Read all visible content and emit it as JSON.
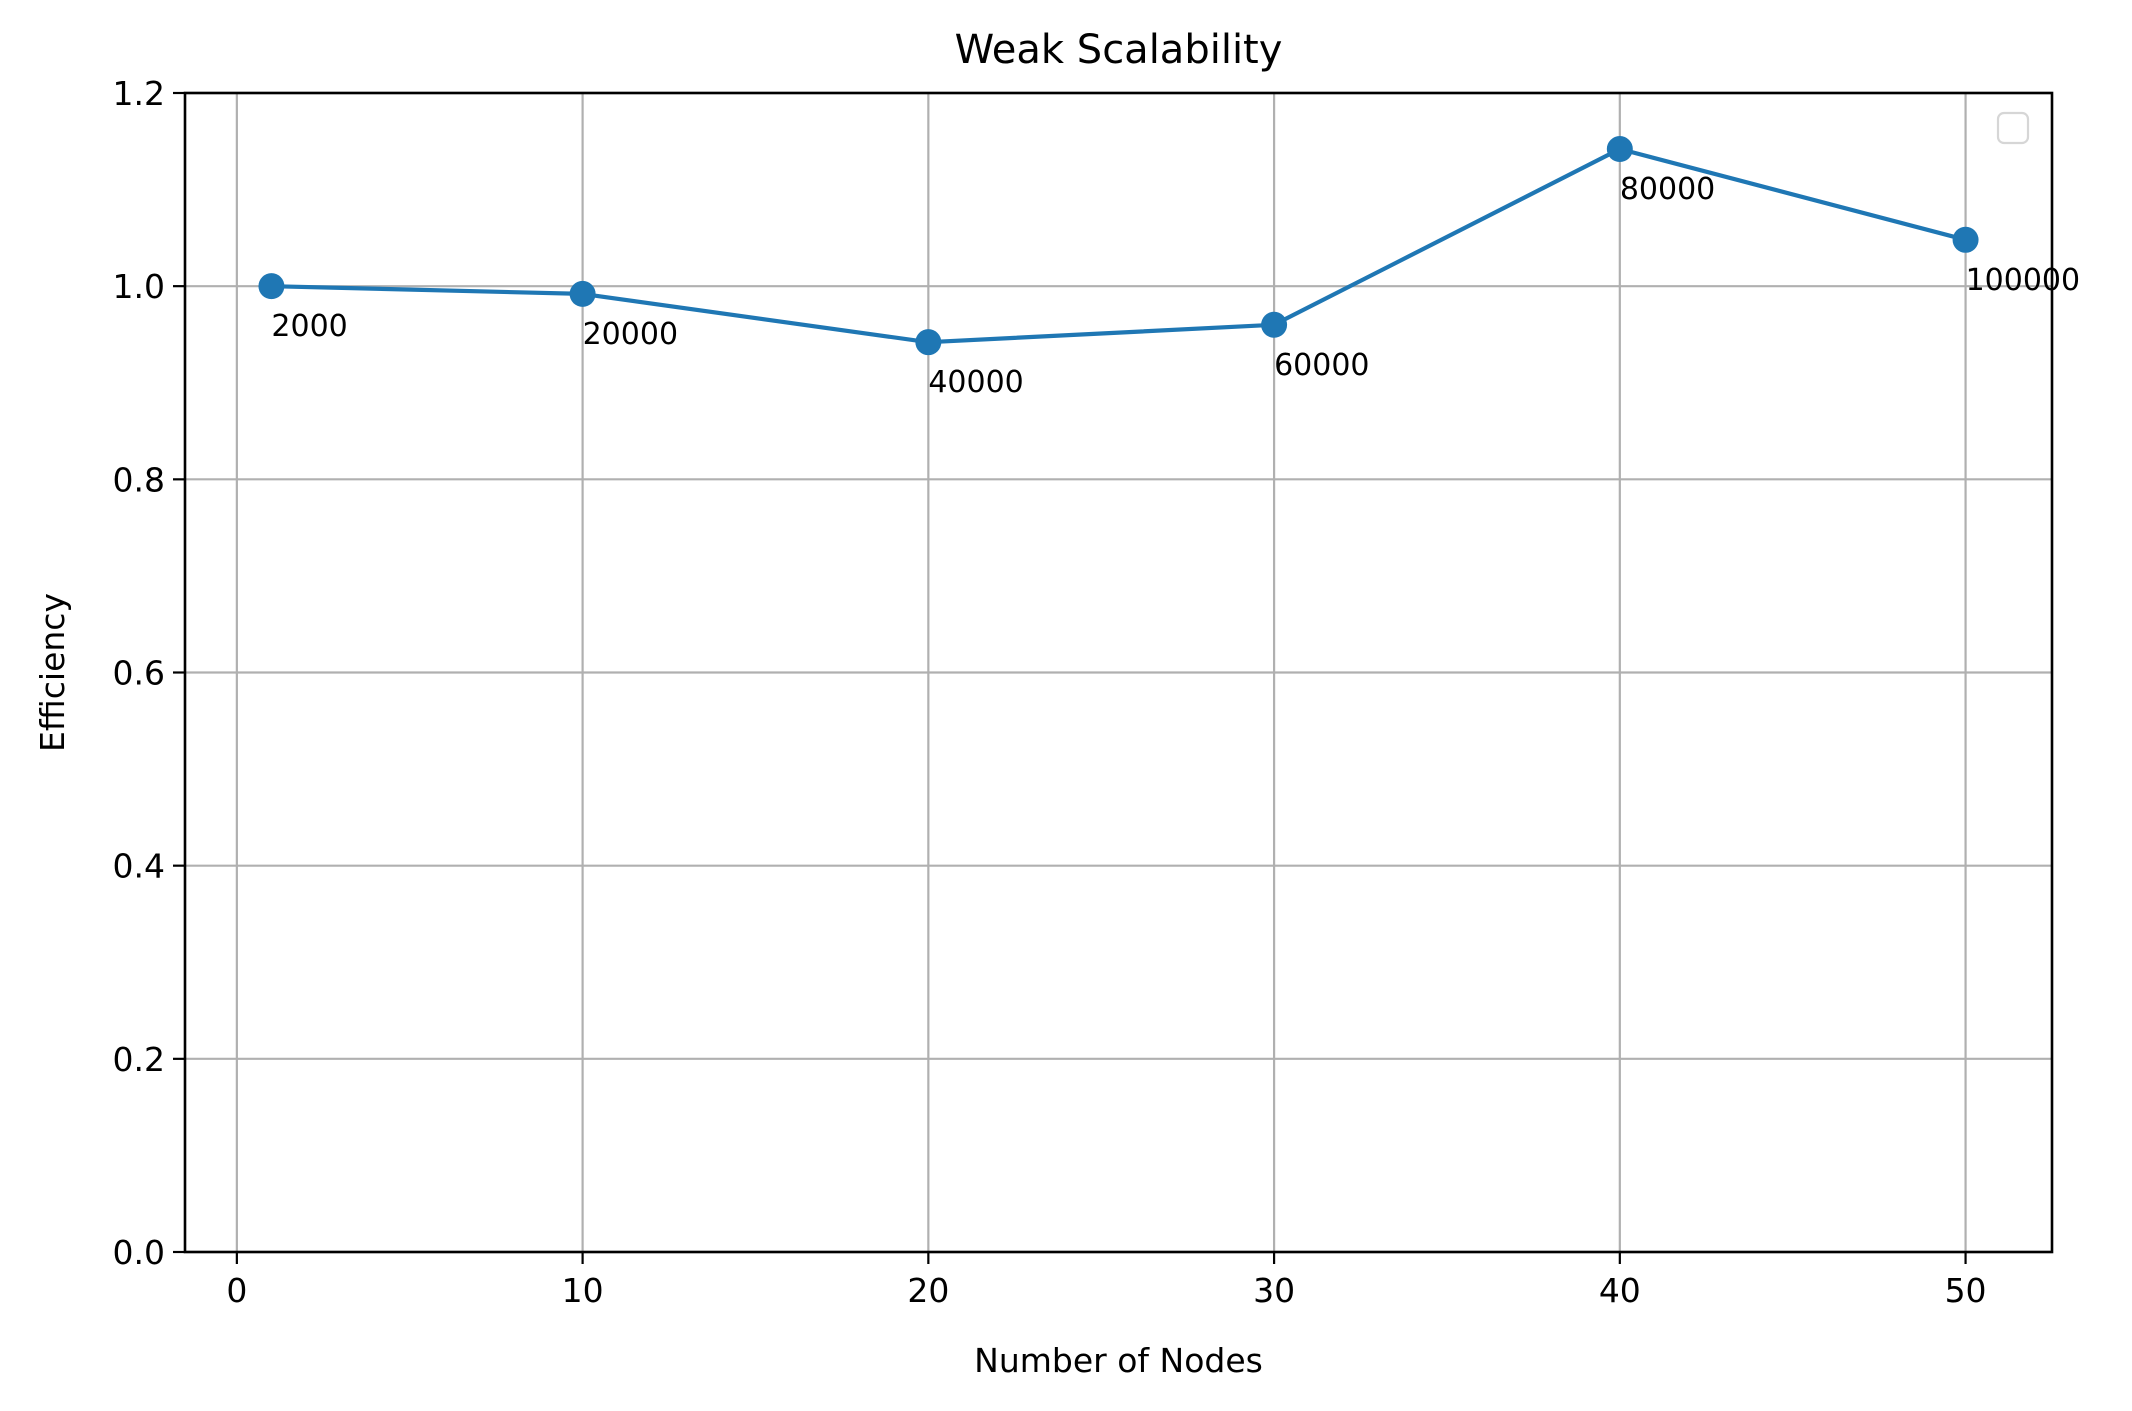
{
  "chart_data": {
    "type": "line",
    "title": "Weak Scalability",
    "xlabel": "Number of Nodes",
    "ylabel": "Efficiency",
    "xlim": [
      -1.5,
      52.5
    ],
    "ylim": [
      0,
      1.2
    ],
    "xticks": [
      0,
      10,
      20,
      30,
      40,
      50
    ],
    "yticks": [
      0.0,
      0.2,
      0.4,
      0.6,
      0.8,
      1.0,
      1.2
    ],
    "xtick_labels": [
      "0",
      "10",
      "20",
      "30",
      "40",
      "50"
    ],
    "ytick_labels": [
      "0.0",
      "0.2",
      "0.4",
      "0.6",
      "0.8",
      "1.0",
      "1.2"
    ],
    "grid": true,
    "legend": "top-right, empty",
    "series": [
      {
        "color": "#1f77b4",
        "x": [
          1,
          10,
          20,
          30,
          40,
          50
        ],
        "y": [
          1.0,
          0.992,
          0.942,
          0.96,
          1.142,
          1.048
        ],
        "point_labels": [
          "2000",
          "20000",
          "40000",
          "60000",
          "80000",
          "100000"
        ]
      }
    ]
  }
}
